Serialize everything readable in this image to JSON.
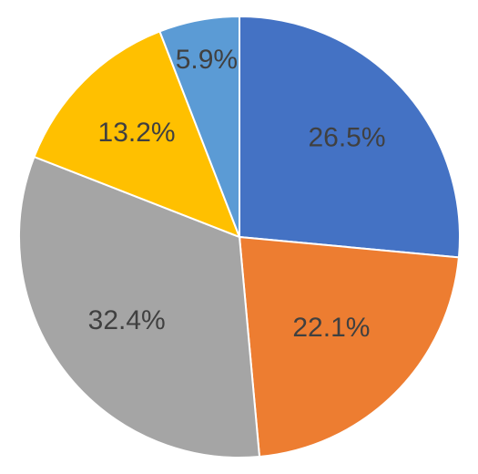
{
  "chart_data": {
    "type": "pie",
    "title": "",
    "slices": [
      {
        "label": "26.5%",
        "value": 26.5,
        "color": "#4472C4"
      },
      {
        "label": "22.1%",
        "value": 22.1,
        "color": "#ED7D31"
      },
      {
        "label": "32.4%",
        "value": 32.4,
        "color": "#A5A5A5"
      },
      {
        "label": "13.2%",
        "value": 13.2,
        "color": "#FFC000"
      },
      {
        "label": "5.9%",
        "value": 5.9,
        "color": "#5B9BD5"
      }
    ],
    "start_angle_deg": 0,
    "direction": "clockwise",
    "legend": "none"
  }
}
